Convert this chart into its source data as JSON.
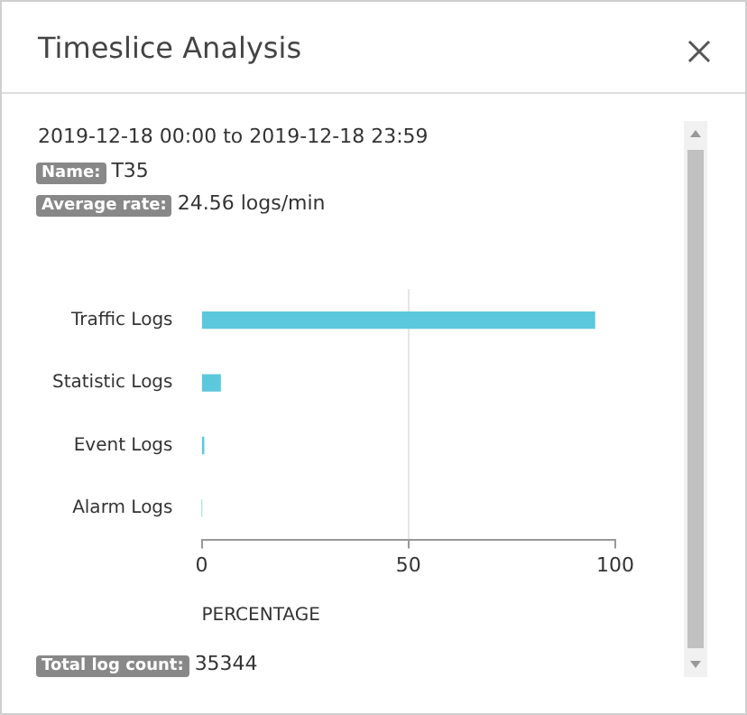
{
  "chart_data": {
    "type": "bar",
    "orientation": "horizontal",
    "title": "Timeslice Analysis",
    "subtitle": "2019-12-18 00:00  to 2019-12-18 23:59",
    "categories": [
      "Traffic Logs",
      "Statistic Logs",
      "Event Logs",
      "Alarm Logs"
    ],
    "values": [
      95,
      4.5,
      0.5,
      0
    ],
    "color": "#5bc8dc",
    "xlim": [
      0,
      100
    ],
    "xticks": [
      0,
      50,
      100
    ],
    "xlabel": "PERCENTAGE",
    "grid": "x",
    "legend": false,
    "annotations": [
      "Name: T35",
      "Average rate: 24.56 logs/min",
      "Total log count: 35344"
    ]
  }
}
